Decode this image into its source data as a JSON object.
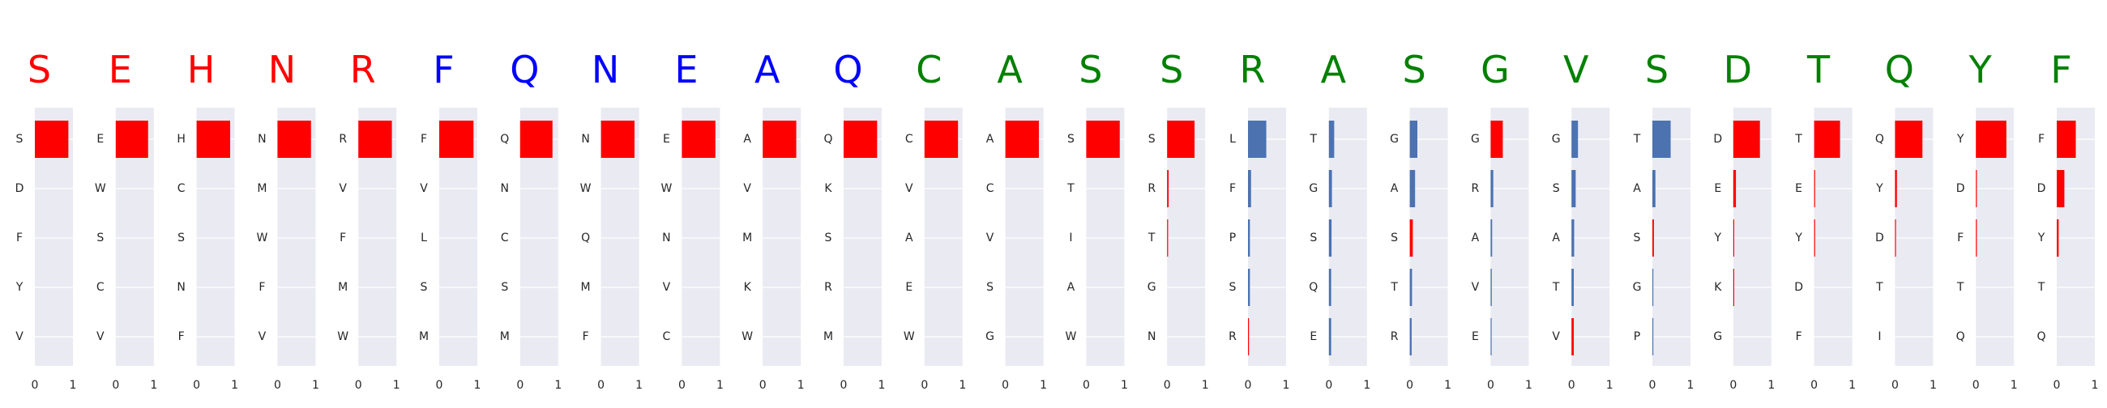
{
  "colors": {
    "red": "#ff0000",
    "blue": "#0000ff",
    "green": "#008000",
    "bar_blue": "#4c72b0",
    "panel_bg": "#eaeaf2",
    "grid": "#ffffff",
    "label": "#262626"
  },
  "chart_data": {
    "type": "bar",
    "orientation": "horizontal",
    "grid": true,
    "xlim": [
      0,
      1
    ],
    "xticks": [
      "0",
      "1"
    ],
    "panels": [
      {
        "residue": "S",
        "residue_color": "red",
        "bar_color": "red",
        "categories": [
          "S",
          "D",
          "F",
          "Y",
          "V"
        ],
        "values": [
          0.88,
          0,
          0,
          0,
          0
        ],
        "highlight_index": 0
      },
      {
        "residue": "E",
        "residue_color": "red",
        "bar_color": "red",
        "categories": [
          "E",
          "W",
          "S",
          "C",
          "V"
        ],
        "values": [
          0.85,
          0,
          0,
          0,
          0
        ],
        "highlight_index": 0
      },
      {
        "residue": "H",
        "residue_color": "red",
        "bar_color": "red",
        "categories": [
          "H",
          "C",
          "S",
          "N",
          "F"
        ],
        "values": [
          0.88,
          0,
          0,
          0,
          0
        ],
        "highlight_index": 0
      },
      {
        "residue": "N",
        "residue_color": "red",
        "bar_color": "red",
        "categories": [
          "N",
          "M",
          "W",
          "F",
          "V"
        ],
        "values": [
          0.88,
          0,
          0,
          0,
          0
        ],
        "highlight_index": 0
      },
      {
        "residue": "R",
        "residue_color": "red",
        "bar_color": "red",
        "categories": [
          "R",
          "V",
          "F",
          "M",
          "W"
        ],
        "values": [
          0.88,
          0,
          0,
          0,
          0
        ],
        "highlight_index": 0
      },
      {
        "residue": "F",
        "residue_color": "blue",
        "bar_color": "red",
        "categories": [
          "F",
          "V",
          "L",
          "S",
          "M"
        ],
        "values": [
          0.9,
          0,
          0,
          0,
          0
        ],
        "highlight_index": 0
      },
      {
        "residue": "Q",
        "residue_color": "blue",
        "bar_color": "red",
        "categories": [
          "Q",
          "N",
          "C",
          "S",
          "M"
        ],
        "values": [
          0.85,
          0,
          0,
          0,
          0
        ],
        "highlight_index": 0
      },
      {
        "residue": "N",
        "residue_color": "blue",
        "bar_color": "red",
        "categories": [
          "N",
          "W",
          "Q",
          "M",
          "F"
        ],
        "values": [
          0.88,
          0,
          0,
          0,
          0
        ],
        "highlight_index": 0
      },
      {
        "residue": "E",
        "residue_color": "blue",
        "bar_color": "red",
        "categories": [
          "E",
          "W",
          "N",
          "V",
          "C"
        ],
        "values": [
          0.88,
          0,
          0,
          0,
          0
        ],
        "highlight_index": 0
      },
      {
        "residue": "A",
        "residue_color": "blue",
        "bar_color": "red",
        "categories": [
          "A",
          "V",
          "M",
          "K",
          "W"
        ],
        "values": [
          0.88,
          0,
          0,
          0,
          0
        ],
        "highlight_index": 0
      },
      {
        "residue": "Q",
        "residue_color": "blue",
        "bar_color": "red",
        "categories": [
          "Q",
          "K",
          "S",
          "R",
          "M"
        ],
        "values": [
          0.88,
          0,
          0,
          0,
          0
        ],
        "highlight_index": 0
      },
      {
        "residue": "C",
        "residue_color": "green",
        "bar_color": "red",
        "categories": [
          "C",
          "V",
          "A",
          "E",
          "W"
        ],
        "values": [
          0.88,
          0,
          0,
          0,
          0
        ],
        "highlight_index": 0
      },
      {
        "residue": "A",
        "residue_color": "green",
        "bar_color": "red",
        "categories": [
          "A",
          "C",
          "V",
          "S",
          "G"
        ],
        "values": [
          0.88,
          0,
          0,
          0,
          0
        ],
        "highlight_index": 0
      },
      {
        "residue": "S",
        "residue_color": "green",
        "bar_color": "red",
        "categories": [
          "S",
          "T",
          "I",
          "A",
          "W"
        ],
        "values": [
          0.88,
          0,
          0,
          0,
          0
        ],
        "highlight_index": 0
      },
      {
        "residue": "S",
        "residue_color": "green",
        "bar_color": "red",
        "categories": [
          "S",
          "R",
          "T",
          "G",
          "N"
        ],
        "values": [
          0.72,
          0.04,
          0.01,
          0,
          0
        ],
        "highlight_index": 0
      },
      {
        "residue": "R",
        "residue_color": "green",
        "bar_color": "blue",
        "categories": [
          "L",
          "F",
          "P",
          "S",
          "R"
        ],
        "values": [
          0.48,
          0.08,
          0.05,
          0.05,
          0.01
        ],
        "highlight_index": 4
      },
      {
        "residue": "A",
        "residue_color": "green",
        "bar_color": "blue",
        "categories": [
          "T",
          "G",
          "S",
          "Q",
          "E"
        ],
        "values": [
          0.14,
          0.08,
          0.07,
          0.06,
          0.06
        ],
        "highlight_index": -1
      },
      {
        "residue": "S",
        "residue_color": "green",
        "bar_color": "blue",
        "categories": [
          "G",
          "A",
          "S",
          "T",
          "R"
        ],
        "values": [
          0.2,
          0.14,
          0.08,
          0.06,
          0.05
        ],
        "highlight_index": 2
      },
      {
        "residue": "G",
        "residue_color": "green",
        "bar_color": "blue",
        "categories": [
          "G",
          "R",
          "A",
          "V",
          "E"
        ],
        "values": [
          0.32,
          0.07,
          0.04,
          0.03,
          0.02
        ],
        "highlight_index": 0
      },
      {
        "residue": "V",
        "residue_color": "green",
        "bar_color": "blue",
        "categories": [
          "G",
          "S",
          "A",
          "T",
          "V"
        ],
        "values": [
          0.17,
          0.11,
          0.07,
          0.06,
          0.06
        ],
        "highlight_index": 4
      },
      {
        "residue": "S",
        "residue_color": "green",
        "bar_color": "blue",
        "categories": [
          "T",
          "A",
          "S",
          "G",
          "P"
        ],
        "values": [
          0.48,
          0.08,
          0.04,
          0.01,
          0.01
        ],
        "highlight_index": 2
      },
      {
        "residue": "D",
        "residue_color": "green",
        "bar_color": "red",
        "categories": [
          "D",
          "E",
          "Y",
          "K",
          "G"
        ],
        "values": [
          0.7,
          0.07,
          0.02,
          0.01,
          0
        ],
        "highlight_index": 0
      },
      {
        "residue": "T",
        "residue_color": "green",
        "bar_color": "red",
        "categories": [
          "T",
          "E",
          "Y",
          "D",
          "F"
        ],
        "values": [
          0.68,
          0.01,
          0.01,
          0,
          0
        ],
        "highlight_index": 0
      },
      {
        "residue": "Q",
        "residue_color": "green",
        "bar_color": "red",
        "categories": [
          "Q",
          "Y",
          "D",
          "T",
          "I"
        ],
        "values": [
          0.72,
          0.05,
          0.01,
          0,
          0
        ],
        "highlight_index": 0
      },
      {
        "residue": "Y",
        "residue_color": "green",
        "bar_color": "red",
        "categories": [
          "Y",
          "D",
          "F",
          "T",
          "Q"
        ],
        "values": [
          0.8,
          0.01,
          0.01,
          0,
          0
        ],
        "highlight_index": 0
      },
      {
        "residue": "F",
        "residue_color": "green",
        "bar_color": "red",
        "categories": [
          "F",
          "D",
          "Y",
          "T",
          "Q"
        ],
        "values": [
          0.5,
          0.2,
          0.05,
          0,
          0
        ],
        "highlight_index": 0
      }
    ]
  }
}
